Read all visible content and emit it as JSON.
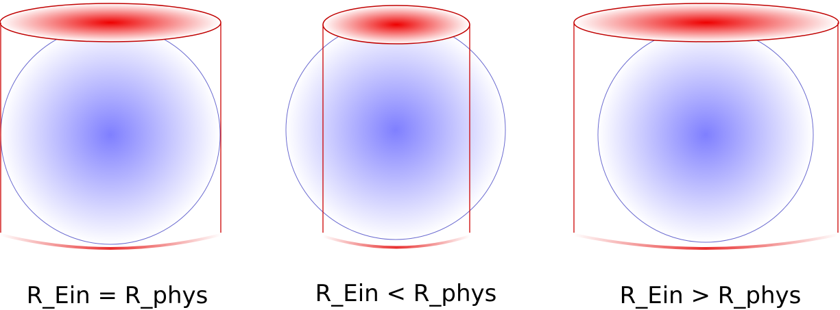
{
  "panels": [
    {
      "caption": "R_Ein = R_phys"
    },
    {
      "caption": "R_Ein < R_phys"
    },
    {
      "caption": "R_Ein > R_phys"
    }
  ],
  "colors": {
    "cylinder": "#cc0000",
    "cylinder_glow": "#ff0000",
    "sphere_outline": "#6666cc",
    "sphere_center": "#7f7fff"
  }
}
